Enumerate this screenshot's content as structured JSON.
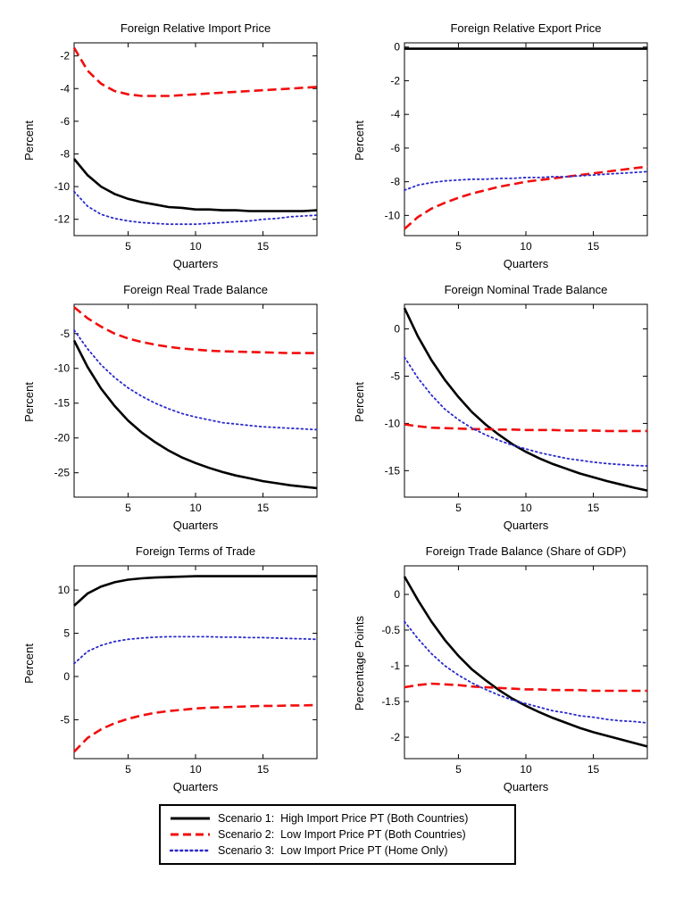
{
  "legend": {
    "items": [
      {
        "label": "Scenario 1:  High Import Price PT (Both Countries)",
        "color": "#000000",
        "style": "solid"
      },
      {
        "label": "Scenario 2:  Low Import Price PT (Both Countries)",
        "color": "#f20d0d",
        "style": "dashed"
      },
      {
        "label": "Scenario 3:  Low Import Price PT (Home Only)",
        "color": "#2929cc",
        "style": "dotted"
      }
    ]
  },
  "chart_data": [
    {
      "type": "line",
      "title": "Foreign Relative Import Price",
      "xlabel": "Quarters",
      "ylabel": "Percent",
      "x": [
        1,
        2,
        3,
        4,
        5,
        6,
        7,
        8,
        9,
        10,
        11,
        12,
        13,
        14,
        15,
        16,
        17,
        18,
        19
      ],
      "xlim": [
        1,
        19
      ],
      "ylim": [
        -13,
        -1.2
      ],
      "xticks": [
        5,
        10,
        15
      ],
      "yticks": [
        -12,
        -10,
        -8,
        -6,
        -4,
        -2
      ],
      "series": [
        {
          "name": "Scenario 1",
          "style": "solid",
          "color": "#000000",
          "values": [
            -8.3,
            -9.3,
            -10.0,
            -10.45,
            -10.75,
            -10.95,
            -11.1,
            -11.25,
            -11.3,
            -11.4,
            -11.4,
            -11.45,
            -11.45,
            -11.5,
            -11.5,
            -11.5,
            -11.5,
            -11.5,
            -11.45
          ]
        },
        {
          "name": "Scenario 2",
          "style": "dashed",
          "color": "#f20d0d",
          "values": [
            -1.5,
            -2.9,
            -3.7,
            -4.15,
            -4.35,
            -4.45,
            -4.45,
            -4.45,
            -4.4,
            -4.35,
            -4.3,
            -4.25,
            -4.2,
            -4.15,
            -4.1,
            -4.05,
            -4.0,
            -3.95,
            -3.9
          ]
        },
        {
          "name": "Scenario 3",
          "style": "dotted",
          "color": "#2929cc",
          "values": [
            -10.3,
            -11.2,
            -11.7,
            -11.95,
            -12.1,
            -12.2,
            -12.25,
            -12.3,
            -12.3,
            -12.3,
            -12.25,
            -12.2,
            -12.15,
            -12.1,
            -12.0,
            -11.95,
            -11.85,
            -11.8,
            -11.75
          ]
        }
      ]
    },
    {
      "type": "line",
      "title": "Foreign Relative Export Price",
      "xlabel": "Quarters",
      "ylabel": "Percent",
      "x": [
        1,
        2,
        3,
        4,
        5,
        6,
        7,
        8,
        9,
        10,
        11,
        12,
        13,
        14,
        15,
        16,
        17,
        18,
        19
      ],
      "xlim": [
        1,
        19
      ],
      "ylim": [
        -11.2,
        0.25
      ],
      "xticks": [
        5,
        10,
        15
      ],
      "yticks": [
        -10,
        -8,
        -6,
        -4,
        -2,
        0
      ],
      "series": [
        {
          "name": "Scenario 1",
          "style": "solid",
          "color": "#000000",
          "values": [
            -0.1,
            -0.1,
            -0.1,
            -0.1,
            -0.1,
            -0.1,
            -0.1,
            -0.1,
            -0.1,
            -0.1,
            -0.1,
            -0.1,
            -0.1,
            -0.1,
            -0.1,
            -0.1,
            -0.1,
            -0.1,
            -0.1
          ]
        },
        {
          "name": "Scenario 2",
          "style": "dashed",
          "color": "#f20d0d",
          "values": [
            -10.8,
            -10.1,
            -9.6,
            -9.25,
            -8.95,
            -8.7,
            -8.5,
            -8.3,
            -8.15,
            -8.0,
            -7.9,
            -7.8,
            -7.7,
            -7.6,
            -7.5,
            -7.4,
            -7.3,
            -7.2,
            -7.1
          ]
        },
        {
          "name": "Scenario 3",
          "style": "dotted",
          "color": "#2929cc",
          "values": [
            -8.5,
            -8.2,
            -8.05,
            -7.95,
            -7.9,
            -7.85,
            -7.85,
            -7.8,
            -7.8,
            -7.75,
            -7.75,
            -7.7,
            -7.7,
            -7.65,
            -7.6,
            -7.55,
            -7.5,
            -7.45,
            -7.4
          ]
        }
      ]
    },
    {
      "type": "line",
      "title": "Foreign Real Trade Balance",
      "xlabel": "Quarters",
      "ylabel": "Percent",
      "x": [
        1,
        2,
        3,
        4,
        5,
        6,
        7,
        8,
        9,
        10,
        11,
        12,
        13,
        14,
        15,
        16,
        17,
        18,
        19
      ],
      "xlim": [
        1,
        19
      ],
      "ylim": [
        -28.5,
        -0.8
      ],
      "xticks": [
        5,
        10,
        15
      ],
      "yticks": [
        -25,
        -20,
        -15,
        -10,
        -5
      ],
      "series": [
        {
          "name": "Scenario 1",
          "style": "solid",
          "color": "#000000",
          "values": [
            -6.0,
            -9.8,
            -12.9,
            -15.4,
            -17.5,
            -19.2,
            -20.6,
            -21.8,
            -22.8,
            -23.6,
            -24.3,
            -24.9,
            -25.4,
            -25.8,
            -26.2,
            -26.5,
            -26.8,
            -27.0,
            -27.2
          ]
        },
        {
          "name": "Scenario 2",
          "style": "dashed",
          "color": "#f20d0d",
          "values": [
            -1.2,
            -2.8,
            -4.0,
            -5.0,
            -5.7,
            -6.2,
            -6.6,
            -6.9,
            -7.15,
            -7.3,
            -7.45,
            -7.55,
            -7.6,
            -7.65,
            -7.7,
            -7.75,
            -7.8,
            -7.8,
            -7.8
          ]
        },
        {
          "name": "Scenario 3",
          "style": "dotted",
          "color": "#2929cc",
          "values": [
            -4.5,
            -7.2,
            -9.5,
            -11.3,
            -12.8,
            -14.0,
            -15.0,
            -15.8,
            -16.5,
            -17.0,
            -17.4,
            -17.8,
            -18.0,
            -18.2,
            -18.4,
            -18.5,
            -18.6,
            -18.7,
            -18.8
          ]
        }
      ]
    },
    {
      "type": "line",
      "title": "Foreign Nominal Trade Balance",
      "xlabel": "Quarters",
      "ylabel": "Percent",
      "x": [
        1,
        2,
        3,
        4,
        5,
        6,
        7,
        8,
        9,
        10,
        11,
        12,
        13,
        14,
        15,
        16,
        17,
        18,
        19
      ],
      "xlim": [
        1,
        19
      ],
      "ylim": [
        -17.8,
        2.6
      ],
      "xticks": [
        5,
        10,
        15
      ],
      "yticks": [
        -15,
        -10,
        -5,
        0
      ],
      "series": [
        {
          "name": "Scenario 1",
          "style": "solid",
          "color": "#000000",
          "values": [
            2.2,
            -0.8,
            -3.3,
            -5.4,
            -7.2,
            -8.8,
            -10.1,
            -11.2,
            -12.2,
            -13.0,
            -13.7,
            -14.3,
            -14.8,
            -15.3,
            -15.7,
            -16.1,
            -16.45,
            -16.8,
            -17.1
          ]
        },
        {
          "name": "Scenario 2",
          "style": "dashed",
          "color": "#f20d0d",
          "values": [
            -10.1,
            -10.3,
            -10.45,
            -10.5,
            -10.55,
            -10.6,
            -10.6,
            -10.65,
            -10.65,
            -10.7,
            -10.7,
            -10.7,
            -10.75,
            -10.75,
            -10.75,
            -10.8,
            -10.8,
            -10.8,
            -10.8
          ]
        },
        {
          "name": "Scenario 3",
          "style": "dotted",
          "color": "#2929cc",
          "values": [
            -3.0,
            -5.2,
            -7.0,
            -8.5,
            -9.6,
            -10.5,
            -11.2,
            -11.8,
            -12.3,
            -12.7,
            -13.1,
            -13.4,
            -13.7,
            -13.9,
            -14.1,
            -14.25,
            -14.35,
            -14.45,
            -14.5
          ]
        }
      ]
    },
    {
      "type": "line",
      "title": "Foreign Terms of Trade",
      "xlabel": "Quarters",
      "ylabel": "Percent",
      "x": [
        1,
        2,
        3,
        4,
        5,
        6,
        7,
        8,
        9,
        10,
        11,
        12,
        13,
        14,
        15,
        16,
        17,
        18,
        19
      ],
      "xlim": [
        1,
        19
      ],
      "ylim": [
        -9.5,
        12.8
      ],
      "xticks": [
        5,
        10,
        15
      ],
      "yticks": [
        -5,
        0,
        5,
        10
      ],
      "series": [
        {
          "name": "Scenario 1",
          "style": "solid",
          "color": "#000000",
          "values": [
            8.2,
            9.6,
            10.4,
            10.9,
            11.2,
            11.35,
            11.45,
            11.5,
            11.55,
            11.6,
            11.6,
            11.6,
            11.6,
            11.6,
            11.6,
            11.6,
            11.6,
            11.6,
            11.6
          ]
        },
        {
          "name": "Scenario 2",
          "style": "dashed",
          "color": "#f20d0d",
          "values": [
            -8.7,
            -7.1,
            -6.1,
            -5.4,
            -4.9,
            -4.5,
            -4.2,
            -4.0,
            -3.85,
            -3.7,
            -3.6,
            -3.55,
            -3.5,
            -3.45,
            -3.4,
            -3.4,
            -3.35,
            -3.35,
            -3.3
          ]
        },
        {
          "name": "Scenario 3",
          "style": "dotted",
          "color": "#2929cc",
          "values": [
            1.5,
            2.9,
            3.6,
            4.05,
            4.3,
            4.45,
            4.55,
            4.6,
            4.6,
            4.6,
            4.6,
            4.55,
            4.55,
            4.5,
            4.5,
            4.45,
            4.4,
            4.35,
            4.3
          ]
        }
      ]
    },
    {
      "type": "line",
      "title": "Foreign Trade Balance (Share of GDP)",
      "xlabel": "Quarters",
      "ylabel": "Percentage Points",
      "x": [
        1,
        2,
        3,
        4,
        5,
        6,
        7,
        8,
        9,
        10,
        11,
        12,
        13,
        14,
        15,
        16,
        17,
        18,
        19
      ],
      "xlim": [
        1,
        19
      ],
      "ylim": [
        -2.3,
        0.4
      ],
      "xticks": [
        5,
        10,
        15
      ],
      "yticks": [
        -2,
        -1.5,
        -1,
        -0.5,
        0
      ],
      "series": [
        {
          "name": "Scenario 1",
          "style": "solid",
          "color": "#000000",
          "values": [
            0.25,
            -0.08,
            -0.38,
            -0.64,
            -0.86,
            -1.05,
            -1.2,
            -1.34,
            -1.46,
            -1.56,
            -1.65,
            -1.73,
            -1.8,
            -1.87,
            -1.93,
            -1.98,
            -2.03,
            -2.08,
            -2.13
          ]
        },
        {
          "name": "Scenario 2",
          "style": "dashed",
          "color": "#f20d0d",
          "values": [
            -1.3,
            -1.27,
            -1.25,
            -1.26,
            -1.27,
            -1.29,
            -1.3,
            -1.31,
            -1.32,
            -1.33,
            -1.33,
            -1.34,
            -1.34,
            -1.34,
            -1.35,
            -1.35,
            -1.35,
            -1.35,
            -1.35
          ]
        },
        {
          "name": "Scenario 3",
          "style": "dotted",
          "color": "#2929cc",
          "values": [
            -0.38,
            -0.62,
            -0.83,
            -1.0,
            -1.13,
            -1.24,
            -1.33,
            -1.41,
            -1.48,
            -1.53,
            -1.58,
            -1.63,
            -1.66,
            -1.7,
            -1.72,
            -1.75,
            -1.77,
            -1.78,
            -1.8
          ]
        }
      ]
    }
  ]
}
